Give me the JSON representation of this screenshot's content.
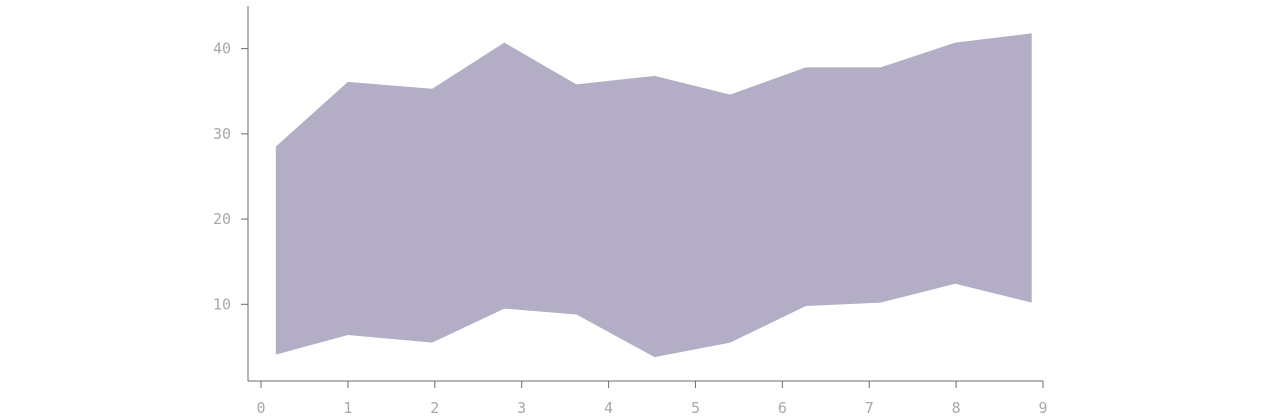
{
  "chart_data": {
    "type": "area",
    "x": [
      0.17,
      1.0,
      1.97,
      2.8,
      3.63,
      4.53,
      5.4,
      6.27,
      7.13,
      7.99,
      8.87
    ],
    "series": [
      {
        "lower": [
          4.1,
          6.4,
          5.5,
          9.5,
          8.8,
          3.8,
          5.5,
          9.8,
          10.2,
          12.4,
          10.2
        ],
        "upper": [
          28.5,
          36.1,
          35.3,
          40.7,
          35.8,
          36.8,
          34.6,
          37.8,
          37.8,
          40.7,
          41.8
        ],
        "color": "#b3aec6"
      }
    ],
    "xlim": [
      -0.15,
      9.0
    ],
    "ylim": [
      1.0,
      45.0
    ],
    "xticks": [
      0,
      1,
      2,
      3,
      4,
      5,
      6,
      7,
      8,
      9
    ],
    "yticks": [
      10,
      20,
      30,
      40
    ],
    "axis_color": "#6b6b6b",
    "label_color": "#a8a8a8",
    "grid": false,
    "legend": "none",
    "title": "",
    "xlabel": "",
    "ylabel": ""
  }
}
